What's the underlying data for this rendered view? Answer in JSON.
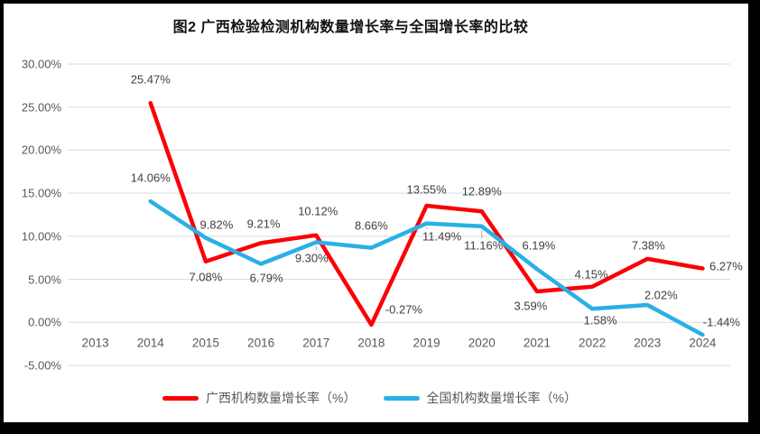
{
  "chart_data": {
    "type": "line",
    "title": "图2 广西检验检测机构数量增长率与全国增长率的比较",
    "categories": [
      "2013",
      "2014",
      "2015",
      "2016",
      "2017",
      "2018",
      "2019",
      "2020",
      "2021",
      "2022",
      "2023",
      "2024"
    ],
    "y_axis": {
      "min": -5,
      "max": 30,
      "step": 5,
      "tick_values": [
        30,
        25,
        20,
        15,
        10,
        5,
        0,
        -5
      ],
      "tick_labels": [
        "30.00%",
        "25.00%",
        "20.00%",
        "15.00%",
        "10.00%",
        "5.00%",
        "0.00%",
        "-5.00%"
      ]
    },
    "grid": true,
    "legend_position": "bottom",
    "series": [
      {
        "name": "广西机构数量增长率（%）",
        "color": "#FB0006",
        "values": [
          null,
          25.47,
          7.08,
          9.21,
          10.12,
          -0.27,
          13.55,
          12.89,
          3.59,
          4.15,
          7.38,
          6.27
        ],
        "labels": [
          "",
          "25.47%",
          "7.08%",
          "9.21%",
          "10.12%",
          "-0.27%",
          "13.55%",
          "12.89%",
          "3.59%",
          "4.15%",
          "7.38%",
          "6.27%"
        ],
        "label_offsets": [
          [
            0,
            0
          ],
          [
            0,
            -26
          ],
          [
            0,
            17
          ],
          [
            3,
            -21
          ],
          [
            2,
            -27
          ],
          [
            36,
            -17
          ],
          [
            0,
            -18
          ],
          [
            0,
            -22
          ],
          [
            -7,
            16
          ],
          [
            -1,
            -14
          ],
          [
            1,
            -15
          ],
          [
            26,
            -2
          ]
        ],
        "leader_points": []
      },
      {
        "name": "全国机构数量增长率（%）",
        "color": "#29B0E6",
        "values": [
          null,
          14.06,
          9.82,
          6.79,
          9.3,
          8.66,
          11.49,
          11.16,
          6.19,
          1.58,
          2.02,
          -1.44
        ],
        "labels": [
          "",
          "14.06%",
          "9.82%",
          "6.79%",
          "9.30%",
          "8.66%",
          "11.49%",
          "11.16%",
          "6.19%",
          "1.58%",
          "2.02%",
          "-1.44%"
        ],
        "label_offsets": [
          [
            0,
            0
          ],
          [
            0,
            -26
          ],
          [
            12,
            -15
          ],
          [
            6,
            16
          ],
          [
            -5,
            17
          ],
          [
            0,
            -25
          ],
          [
            17,
            14
          ],
          [
            2,
            21
          ],
          [
            2,
            -26
          ],
          [
            9,
            13
          ],
          [
            15,
            -11
          ],
          [
            21,
            -14
          ]
        ],
        "leader_points": [
          4,
          6,
          7
        ]
      }
    ],
    "colors": {
      "gridline": "#D9D9D9",
      "axis_text": "#595959",
      "data_label_text": "#404040",
      "title_text": "#111111",
      "leader": "#A6A6A6"
    }
  }
}
